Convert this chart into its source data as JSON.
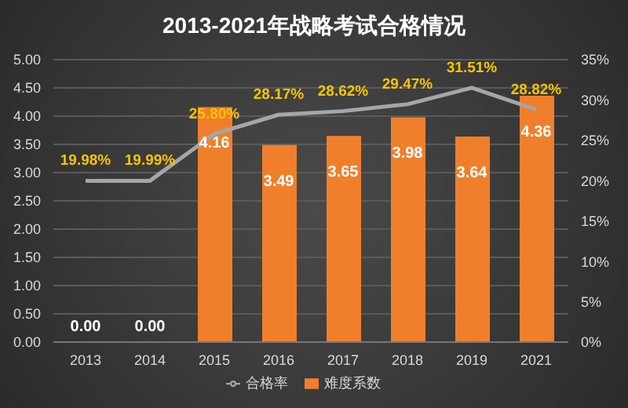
{
  "chart_data": {
    "type": "bar",
    "title": "2013-2021年战略考试合格情况",
    "categories": [
      "2013",
      "2014",
      "2015",
      "2016",
      "2017",
      "2018",
      "2019",
      "2021"
    ],
    "series": [
      {
        "name": "难度系数",
        "color": "#f07f2c",
        "values": [
          0,
          0,
          4.16,
          3.49,
          3.65,
          3.98,
          3.64,
          4.36
        ],
        "value_labels": [
          "0.00",
          "0.00",
          "4.16",
          "3.49",
          "3.65",
          "3.98",
          "3.64",
          "4.36"
        ]
      },
      {
        "name": "合格率",
        "type": "line",
        "axis": "y2",
        "color": "#a6a6a6",
        "values": [
          19.98,
          19.99,
          25.8,
          28.17,
          28.62,
          29.47,
          31.51,
          28.82
        ],
        "value_labels": [
          "19.98%",
          "19.99%",
          "25.80%",
          "28.17%",
          "28.62%",
          "29.47%",
          "31.51%",
          "28.82%"
        ]
      }
    ],
    "ylim": [
      0,
      5
    ],
    "yticks": [
      {
        "value": 0,
        "label": "0.00"
      },
      {
        "value": 0.5,
        "label": "0.50"
      },
      {
        "value": 1,
        "label": "1.00"
      },
      {
        "value": 1.5,
        "label": "1.50"
      },
      {
        "value": 2,
        "label": "2.00"
      },
      {
        "value": 2.5,
        "label": "2.50"
      },
      {
        "value": 3,
        "label": "3.00"
      },
      {
        "value": 3.5,
        "label": "3.50"
      },
      {
        "value": 4,
        "label": "4.00"
      },
      {
        "value": 4.5,
        "label": "4.50"
      },
      {
        "value": 5,
        "label": "5.00"
      }
    ],
    "y2lim": [
      0,
      35
    ],
    "y2ticks": [
      {
        "value": 0,
        "label": "0%"
      },
      {
        "value": 5,
        "label": "5%"
      },
      {
        "value": 10,
        "label": "10%"
      },
      {
        "value": 15,
        "label": "15%"
      },
      {
        "value": 20,
        "label": "20%"
      },
      {
        "value": 25,
        "label": "25%"
      },
      {
        "value": 30,
        "label": "30%"
      },
      {
        "value": 35,
        "label": "35%"
      }
    ],
    "grid": "y",
    "legend": "bottom",
    "marker": "none",
    "line_style": "solid"
  }
}
